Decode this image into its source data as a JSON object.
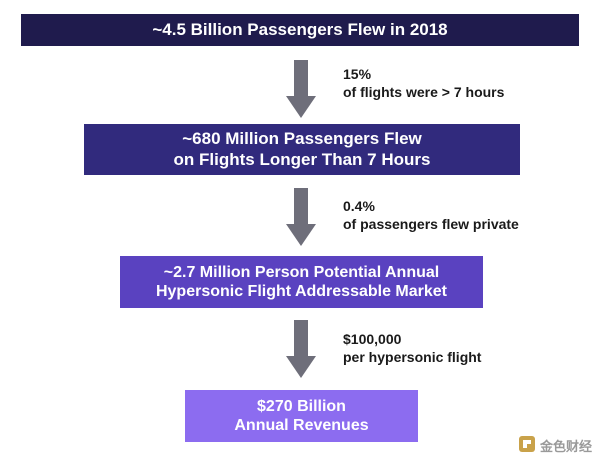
{
  "steps": [
    {
      "lines": [
        "~4.5 Billion Passengers Flew in 2018"
      ]
    },
    {
      "lines": [
        "~680 Million Passengers Flew",
        "on Flights Longer Than 7 Hours"
      ]
    },
    {
      "lines": [
        "~2.7 Million Person Potential Annual",
        "Hypersonic Flight Addressable Market"
      ]
    },
    {
      "lines": [
        "$270 Billion",
        "Annual Revenues"
      ]
    }
  ],
  "transitions": [
    {
      "value": "15%",
      "label": "of flights were > 7 hours"
    },
    {
      "value": "0.4%",
      "label": "of passengers flew private"
    },
    {
      "value": "$100,000",
      "label": "per hypersonic flight"
    }
  ],
  "watermark": "金色财经",
  "colors": {
    "step1": "#1f1b4d",
    "step2": "#312a7d",
    "step3": "#5a42c0",
    "step4": "#8c6cf0",
    "arrow": "#6e6e7a"
  },
  "icons": {
    "arrow": "down-arrow-icon",
    "watermark_logo": "jinse-logo-icon"
  }
}
